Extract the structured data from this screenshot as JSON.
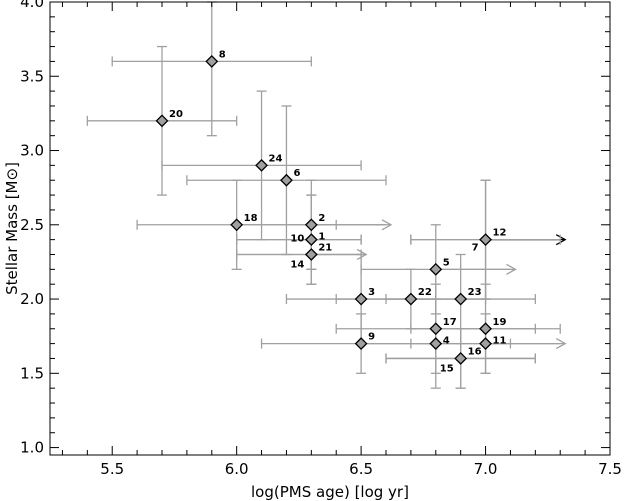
{
  "chart_data": {
    "type": "scatter",
    "xlabel": "log(PMS age) [log yr]",
    "ylabel": "Stellar Mass [M⊙]",
    "xlim": [
      5.25,
      7.5
    ],
    "ylim": [
      0.95,
      4.0
    ],
    "xticks": [
      "5.5",
      "6.0",
      "6.5",
      "7.0",
      "7.5"
    ],
    "yticks": [
      "1.0",
      "1.5",
      "2.0",
      "2.5",
      "3.0",
      "3.5",
      "4.0"
    ],
    "grid": false,
    "colors": {
      "errorbar": "#a0a0a0",
      "marker_fill": "#a0a0a0",
      "marker_edge": "#000000",
      "arrow": "#000000"
    },
    "points": [
      {
        "label": "8",
        "x": 5.9,
        "y": 3.6,
        "xerr": [
          5.5,
          6.3
        ],
        "yerr": [
          3.1,
          4.0
        ]
      },
      {
        "label": "20",
        "x": 5.7,
        "y": 3.2,
        "xerr": [
          5.4,
          6.0
        ],
        "yerr": [
          2.7,
          3.7
        ]
      },
      {
        "label": "24",
        "x": 6.1,
        "y": 2.9,
        "xerr": [
          5.7,
          6.5
        ],
        "yerr": [
          2.4,
          3.4
        ]
      },
      {
        "label": "6",
        "x": 6.2,
        "y": 2.8,
        "xerr": [
          5.8,
          6.6
        ],
        "yerr": [
          2.3,
          3.3
        ]
      },
      {
        "label": "18",
        "x": 6.0,
        "y": 2.5,
        "xerr": [
          5.6,
          6.4
        ],
        "yerr": [
          2.2,
          2.8
        ]
      },
      {
        "label": "2",
        "x": 6.3,
        "y": 2.5,
        "xerr": [
          6.0,
          6.6
        ],
        "yerr": [
          2.2,
          2.8
        ],
        "lower_limit_x": true
      },
      {
        "label": "10",
        "x": 6.3,
        "y": 2.4,
        "xerr": [
          6.0,
          6.5
        ],
        "yerr": [
          2.2,
          2.7
        ],
        "label_side": "left"
      },
      {
        "label": "1",
        "x": 6.3,
        "y": 2.4,
        "xerr": [
          6.0,
          6.5
        ],
        "yerr": [
          2.2,
          2.7
        ]
      },
      {
        "label": "21",
        "x": 6.3,
        "y": 2.3,
        "xerr": [
          6.0,
          6.5
        ],
        "yerr": [
          2.1,
          2.5
        ],
        "lower_limit_x": true
      },
      {
        "label": "14",
        "x": 6.3,
        "y": 2.3,
        "xerr": [
          6.0,
          6.5
        ],
        "yerr": [
          2.1,
          2.5
        ],
        "label_side": "below-left"
      },
      {
        "label": "3",
        "x": 6.5,
        "y": 2.0,
        "xerr": [
          6.2,
          6.8
        ],
        "yerr": [
          1.7,
          2.3
        ]
      },
      {
        "label": "22",
        "x": 6.7,
        "y": 2.0,
        "xerr": [
          6.4,
          7.0
        ],
        "yerr": [
          1.8,
          2.2
        ]
      },
      {
        "label": "23",
        "x": 6.9,
        "y": 2.0,
        "xerr": [
          6.6,
          7.2
        ],
        "yerr": [
          1.7,
          2.3
        ]
      },
      {
        "label": "5",
        "x": 6.8,
        "y": 2.2,
        "xerr": [
          6.5,
          7.1
        ],
        "yerr": [
          1.9,
          2.5
        ],
        "lower_limit_x": true
      },
      {
        "label": "12",
        "x": 7.0,
        "y": 2.4,
        "xerr": [
          6.7,
          7.3
        ],
        "yerr": [
          2.0,
          2.8
        ],
        "lower_limit_x": true
      },
      {
        "label": "7",
        "x": 7.0,
        "y": 2.4,
        "xerr": [
          6.7,
          7.3
        ],
        "yerr": [
          2.0,
          2.8
        ],
        "label_side": "below-left"
      },
      {
        "label": "17",
        "x": 6.8,
        "y": 1.8,
        "xerr": [
          6.4,
          7.2
        ],
        "yerr": [
          1.5,
          2.1
        ]
      },
      {
        "label": "4",
        "x": 6.8,
        "y": 1.7,
        "xerr": [
          6.5,
          7.1
        ],
        "yerr": [
          1.4,
          2.0
        ]
      },
      {
        "label": "9",
        "x": 6.5,
        "y": 1.7,
        "xerr": [
          6.1,
          6.8
        ],
        "yerr": [
          1.5,
          1.9
        ]
      },
      {
        "label": "19",
        "x": 7.0,
        "y": 1.8,
        "xerr": [
          6.7,
          7.3
        ],
        "yerr": [
          1.5,
          2.1
        ]
      },
      {
        "label": "11",
        "x": 7.0,
        "y": 1.7,
        "xerr": [
          6.7,
          7.3
        ],
        "yerr": [
          1.5,
          1.9
        ],
        "lower_limit_x": true
      },
      {
        "label": "16",
        "x": 6.9,
        "y": 1.6,
        "xerr": [
          6.6,
          7.2
        ],
        "yerr": [
          1.4,
          1.8
        ]
      },
      {
        "label": "15",
        "x": 6.9,
        "y": 1.6,
        "xerr": [
          6.6,
          7.2
        ],
        "yerr": [
          1.4,
          1.8
        ],
        "label_side": "below-left"
      }
    ]
  }
}
